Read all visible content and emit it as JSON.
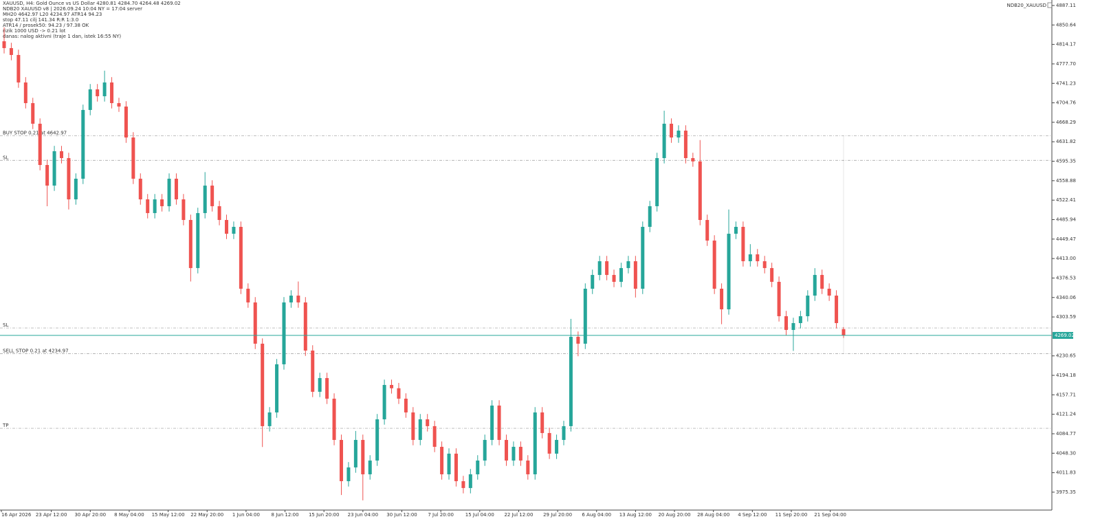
{
  "chart_data": {
    "type": "candlestick",
    "header": [
      "XAUUSD, H4:  Gold Ounce vs US Dollar  4280.81 4284.70 4264.48 4269.02",
      "NDB20 XAUUSD v8  |  2026.09.24 10:04 NY = 17:04 server",
      "MH20 4642.97   L20 4234.97   ATR14 94.23",
      "stop 47.11  cilj 141.34  R:R 1:3.0",
      "ATR14 / prosek50: 94.23 / 97.38  OK",
      "rizik 1000 USD -> 0.21 lot",
      "danas: nalog aktivni  (traje 1 dan, istek 16:55 NY)"
    ],
    "indicator": "NDB20_XAUUSD",
    "up_color": "#26a69a",
    "down_color": "#ef5350",
    "last_price": 4269.02,
    "levels": [
      {
        "label": "BUY STOP 0.21 at 4642.97",
        "value": 4642.97
      },
      {
        "label": "SL",
        "value": 4597
      },
      {
        "label": "SL",
        "value": 4283
      },
      {
        "label": "SELL STOP 0.21 at 4234.97",
        "value": 4234.97
      },
      {
        "label": "TP",
        "value": 4095
      }
    ],
    "xlabels": [
      "16 Apr 2026",
      "23 Apr 12:00",
      "30 Apr 20:00",
      "8 May 04:00",
      "15 May 12:00",
      "22 May 20:00",
      "1 Jun 04:00",
      "8 Jun 12:00",
      "15 Jun 20:00",
      "23 Jun 04:00",
      "30 Jun 12:00",
      "7 Jul 20:00",
      "15 Jul 04:00",
      "22 Jul 12:00",
      "29 Jul 20:00",
      "6 Aug 04:00",
      "13 Aug 12:00",
      "20 Aug 20:00",
      "28 Aug 04:00",
      "4 Sep 12:00",
      "11 Sep 20:00",
      "21 Sep 04:00"
    ],
    "ylim": [
      3941.8,
      4897.4
    ],
    "yticks": [
      4887.11,
      4850.64,
      4814.17,
      {
        "value": 4777.7,
        "label": "4777.70"
      },
      4741.23,
      4704.76,
      4668.29,
      4631.82,
      4595.35,
      4558.88,
      4522.41,
      4485.94,
      4449.47,
      {
        "value": 4413.0,
        "label": "4413.00"
      },
      4376.53,
      4340.06,
      4303.59,
      4230.65,
      4194.18,
      4157.71,
      4121.24,
      4084.77,
      {
        "value": 4048.3,
        "label": "4048.30"
      },
      4011.83,
      3975.35
    ],
    "open": [
      4820.1,
      4807.3,
      4794.4,
      4742.9,
      4704.2,
      4665.6,
      4588.3,
      4549.7,
      4614.1,
      4601.2,
      4523.9,
      4562.6,
      4691.4,
      4730.0,
      4717.1,
      4742.9,
      4704.2,
      4697.8,
      4639.8,
      4562.6,
      4523.9,
      4498.2,
      4523.9,
      4511.1,
      4562.6,
      4523.9,
      4485.3,
      4395.2,
      4498.2,
      4549.7,
      4511.1,
      4485.3,
      4459.5,
      4472.4,
      4356.5,
      4330.8,
      4253.5,
      4099.0,
      4124.7,
      4214.9,
      4330.8,
      4343.6,
      4330.8,
      4240.6,
      4163.4,
      4189.1,
      4150.5,
      4073.2,
      3995.9,
      4021.7,
      4073.2,
      4008.8,
      4034.6,
      4111.8,
      4176.2,
      4170.0,
      4150.5,
      4124.7,
      4073.2,
      4111.8,
      4099.0,
      4060.3,
      4008.8,
      4047.5,
      3995.9,
      3983.1,
      4008.8,
      4034.6,
      4073.2,
      4137.6,
      4073.2,
      4034.6,
      4060.3,
      4034.6,
      4008.8,
      4124.7,
      4086.1,
      4047.5,
      4073.2,
      4099.0,
      4266.4,
      4253.5,
      4356.5,
      4382.3,
      4408.0,
      4382.3,
      4369.4,
      4395.2,
      4408.0,
      4356.5,
      4472.4,
      4511.1,
      4601.2,
      4665.6,
      4639.8,
      4652.7,
      4601.2,
      4595.0,
      4485.3,
      4446.7,
      4356.5,
      4317.9,
      4459.5,
      4472.4,
      4408.0,
      4420.9,
      4408.0,
      4395.2,
      4369.4,
      4305.0,
      4279.3,
      4292.1,
      4305.0,
      4343.6,
      4382.3,
      4356.5,
      4343.6,
      4280.81
    ],
    "high": [
      4846.0,
      4817.3,
      4804.4,
      4752.9,
      4714.2,
      4675.6,
      4598.3,
      4624.1,
      4624.1,
      4611.2,
      4572.6,
      4701.4,
      4740.0,
      4740.0,
      4765.0,
      4752.9,
      4714.2,
      4707.8,
      4649.8,
      4572.6,
      4533.9,
      4533.9,
      4533.9,
      4572.6,
      4572.6,
      4533.9,
      4495.3,
      4508.2,
      4575.0,
      4559.7,
      4521.1,
      4495.3,
      4482.4,
      4482.4,
      4366.5,
      4340.8,
      4263.5,
      4134.7,
      4224.9,
      4340.8,
      4353.6,
      4370.0,
      4340.8,
      4250.6,
      4199.1,
      4199.1,
      4160.5,
      4083.2,
      4031.7,
      4090.0,
      4083.2,
      4044.6,
      4121.8,
      4186.2,
      4186.2,
      4180.0,
      4160.5,
      4134.7,
      4121.8,
      4121.8,
      4109.0,
      4070.3,
      4057.5,
      4057.5,
      4005.9,
      4018.8,
      4044.6,
      4083.2,
      4147.6,
      4147.6,
      4083.2,
      4070.3,
      4070.3,
      4044.6,
      4134.7,
      4134.7,
      4096.1,
      4083.2,
      4109.0,
      4300.0,
      4276.4,
      4366.5,
      4392.3,
      4418.0,
      4418.0,
      4392.3,
      4405.2,
      4418.0,
      4418.0,
      4482.4,
      4521.1,
      4611.2,
      4690.0,
      4675.6,
      4662.7,
      4662.7,
      4611.2,
      4635.0,
      4495.3,
      4456.7,
      4366.5,
      4505.0,
      4482.4,
      4482.4,
      4440.0,
      4430.9,
      4418.0,
      4405.2,
      4379.4,
      4315.0,
      4302.1,
      4315.0,
      4353.6,
      4395.0,
      4392.3,
      4366.5,
      4353.6,
      4284.7
    ],
    "low": [
      4797.3,
      4784.4,
      4732.9,
      4694.2,
      4655.6,
      4578.3,
      4511.0,
      4539.7,
      4591.2,
      4505.0,
      4513.9,
      4552.6,
      4681.4,
      4707.1,
      4707.1,
      4694.2,
      4687.8,
      4629.8,
      4552.6,
      4513.9,
      4488.2,
      4488.2,
      4501.1,
      4501.1,
      4513.9,
      4475.3,
      4370.0,
      4385.2,
      4488.2,
      4501.1,
      4475.3,
      4449.5,
      4449.5,
      4346.5,
      4320.8,
      4243.5,
      4060.0,
      4089.0,
      4114.7,
      4204.9,
      4320.8,
      4320.8,
      4230.6,
      4153.4,
      4153.4,
      4140.5,
      4063.2,
      3970.0,
      3985.9,
      4011.7,
      3960.0,
      3998.8,
      4024.6,
      4101.8,
      4160.0,
      4140.5,
      4114.7,
      4063.2,
      4063.2,
      4089.0,
      4050.3,
      3998.8,
      3998.8,
      3985.9,
      3973.1,
      3973.1,
      3998.8,
      4024.6,
      4063.2,
      4063.2,
      4024.6,
      4024.6,
      4024.6,
      3998.8,
      3998.8,
      4076.1,
      4037.5,
      4037.5,
      4063.2,
      4089.0,
      4230.0,
      4243.5,
      4346.5,
      4372.3,
      4372.3,
      4359.4,
      4359.4,
      4385.2,
      4340.0,
      4346.5,
      4462.4,
      4501.1,
      4591.2,
      4629.8,
      4629.8,
      4591.2,
      4585.0,
      4475.3,
      4436.7,
      4346.5,
      4290.0,
      4307.9,
      4449.5,
      4398.0,
      4398.0,
      4398.0,
      4385.2,
      4359.4,
      4295.0,
      4269.3,
      4240.0,
      4282.1,
      4295.0,
      4333.6,
      4346.5,
      4333.6,
      4282.1,
      4264.48
    ],
    "close": [
      4807.3,
      4794.4,
      4742.9,
      4704.2,
      4665.6,
      4588.3,
      4549.7,
      4614.1,
      4601.2,
      4523.9,
      4562.6,
      4691.4,
      4730.0,
      4717.1,
      4742.9,
      4704.2,
      4697.8,
      4639.8,
      4562.6,
      4523.9,
      4498.2,
      4523.9,
      4511.1,
      4562.6,
      4523.9,
      4485.3,
      4395.2,
      4498.2,
      4549.7,
      4511.1,
      4485.3,
      4459.5,
      4472.4,
      4356.5,
      4330.8,
      4253.5,
      4099.0,
      4124.7,
      4214.9,
      4330.8,
      4343.6,
      4330.8,
      4240.6,
      4163.4,
      4189.1,
      4150.5,
      4073.2,
      3995.9,
      4021.7,
      4073.2,
      4008.8,
      4034.6,
      4111.8,
      4176.2,
      4170.0,
      4150.5,
      4124.7,
      4073.2,
      4111.8,
      4099.0,
      4060.3,
      4008.8,
      4047.5,
      3995.9,
      3983.1,
      4008.8,
      4034.6,
      4073.2,
      4137.6,
      4073.2,
      4034.6,
      4060.3,
      4034.6,
      4008.8,
      4124.7,
      4086.1,
      4047.5,
      4073.2,
      4099.0,
      4266.4,
      4253.5,
      4356.5,
      4382.3,
      4408.0,
      4382.3,
      4369.4,
      4395.2,
      4408.0,
      4356.5,
      4472.4,
      4511.1,
      4601.2,
      4665.6,
      4639.8,
      4652.7,
      4601.2,
      4595.0,
      4485.3,
      4446.7,
      4356.5,
      4317.9,
      4459.5,
      4472.4,
      4408.0,
      4420.9,
      4408.0,
      4395.2,
      4369.4,
      4305.0,
      4279.3,
      4292.1,
      4305.0,
      4343.6,
      4382.3,
      4356.5,
      4343.6,
      4292.1,
      4269.02
    ]
  }
}
